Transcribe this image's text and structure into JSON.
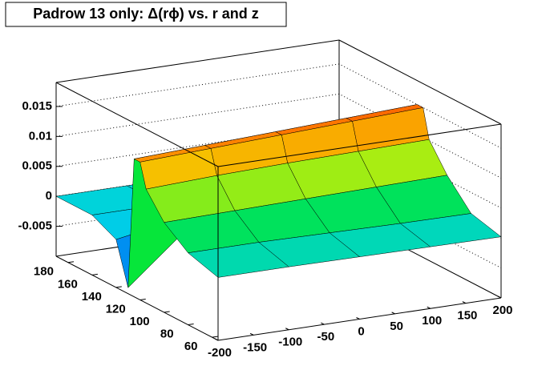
{
  "chart_data": {
    "type": "surface",
    "title": "Padrow 13 only: Δ(rϕ) vs. r and z",
    "x": [
      -200,
      -100,
      0,
      100,
      200
    ],
    "y": [
      55,
      80,
      100,
      115,
      120,
      125,
      130,
      140,
      160,
      190
    ],
    "values": [
      [
        0.0005,
        0.0005,
        0.0004,
        0.0003,
        0.0002
      ],
      [
        0.002,
        0.002,
        0.0018,
        0.0016,
        0.0015
      ],
      [
        0.005,
        0.0052,
        0.0054,
        0.0056,
        0.0058
      ],
      [
        0.009,
        0.0095,
        0.0098,
        0.01,
        0.0102
      ],
      [
        0.013,
        0.0135,
        0.014,
        0.0145,
        0.015
      ],
      [
        0.013,
        0.0135,
        0.014,
        0.0145,
        0.015
      ],
      [
        -0.009,
        0.001,
        0.001,
        0.001,
        0.0008
      ],
      [
        -0.002,
        0,
        0,
        0,
        0
      ],
      [
        0,
        0,
        0,
        0,
        0
      ],
      [
        0,
        0,
        0,
        0,
        0
      ]
    ],
    "xlim": [
      -200,
      200
    ],
    "ylim": [
      55,
      190
    ],
    "zlim": [
      -0.01,
      0.019
    ],
    "xticks": [
      -200,
      -150,
      -100,
      -50,
      0,
      50,
      100,
      150,
      200
    ],
    "yticks": [
      60,
      80,
      100,
      120,
      140,
      160,
      180
    ],
    "zticks": [
      -0.005,
      0,
      0.005,
      0.01,
      0.015
    ]
  }
}
